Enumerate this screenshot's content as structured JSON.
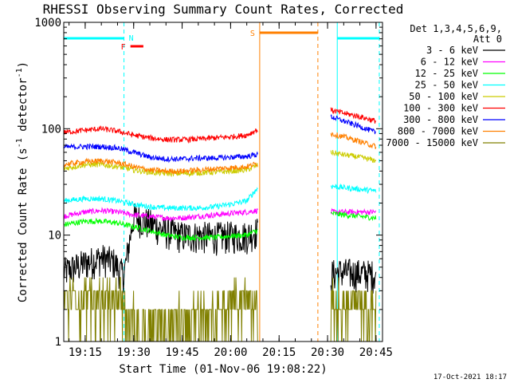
{
  "chart_data": {
    "type": "line",
    "title": "RHESSI Observing Summary Count Rates, Corrected",
    "xlabel": "Start Time (01-Nov-06 19:08:22)",
    "ylabel_main": "Corrected Count Rate (s",
    "ylabel_sup1": "-1",
    "ylabel_mid": " detector",
    "ylabel_sup2": "-1",
    "ylabel_end": ")",
    "yscale": "log",
    "xlim": [
      "19:08:22",
      "20:47:00"
    ],
    "ylim": [
      1,
      1000
    ],
    "x_ticks": [
      "19:15",
      "19:30",
      "19:45",
      "20:00",
      "20:15",
      "20:30",
      "20:45"
    ],
    "y_ticks": [
      "1",
      "10",
      "100",
      "1000"
    ],
    "legend_title_1": "Det 1,3,4,5,6,9,",
    "legend_title_2": "Att 0",
    "legend_placement": "right",
    "footer": "17-Oct-2021 18:17",
    "annotations": {
      "n_label": "N",
      "f_label": "F",
      "s_label": "S",
      "night": [
        [
          "19:08:22",
          "19:27:00"
        ],
        [
          "20:33:00",
          "20:46:00"
        ]
      ],
      "flare": [
        "19:29:00",
        "19:33:00"
      ],
      "saa": [
        "20:09:00",
        "20:27:00"
      ],
      "n_color": "#00ffff",
      "f_color": "#ff0000",
      "s_color": "#ff8000"
    },
    "data_gaps": [
      [
        "20:08:30",
        "20:31:00"
      ]
    ],
    "series": [
      {
        "name": "3 - 6 keV",
        "color": "#000000",
        "x": [
          "19:08",
          "19:15",
          "19:20",
          "19:24",
          "19:26",
          "19:27",
          "19:30",
          "19:35",
          "19:40",
          "19:45",
          "19:50",
          "19:55",
          "20:00",
          "20:05",
          "20:08",
          "20:31",
          "20:33",
          "20:35",
          "20:40",
          "20:45"
        ],
        "values": [
          4.5,
          5.5,
          6.2,
          5.6,
          4.5,
          4.3,
          15,
          13,
          11,
          10,
          10,
          9.8,
          10,
          10,
          11,
          4.3,
          4.5,
          4.5,
          4.4,
          4.3
        ]
      },
      {
        "name": "6 - 12 keV",
        "color": "#ff00ff",
        "x": [
          "19:08",
          "19:15",
          "19:20",
          "19:25",
          "19:30",
          "19:35",
          "19:40",
          "19:45",
          "19:50",
          "19:55",
          "20:00",
          "20:05",
          "20:08",
          "20:31",
          "20:35",
          "20:40",
          "20:45"
        ],
        "values": [
          15,
          16.5,
          17,
          16.5,
          15.5,
          15,
          14.5,
          14.5,
          15,
          15.5,
          16,
          16.5,
          17,
          16.5,
          16.5,
          16.5,
          16.5
        ]
      },
      {
        "name": "12 - 25 keV",
        "color": "#00ff00",
        "x": [
          "19:08",
          "19:15",
          "19:20",
          "19:25",
          "19:30",
          "19:35",
          "19:40",
          "19:45",
          "19:50",
          "19:55",
          "20:00",
          "20:05",
          "20:08",
          "20:31",
          "20:35",
          "20:40",
          "20:45"
        ],
        "values": [
          12.5,
          13.5,
          13.5,
          13,
          12,
          11,
          10,
          9.5,
          9.5,
          9.5,
          9.8,
          10,
          11,
          16,
          15.5,
          15,
          14.5
        ]
      },
      {
        "name": "25 - 50 keV",
        "color": "#00ffff",
        "x": [
          "19:08",
          "19:15",
          "19:20",
          "19:25",
          "19:30",
          "19:35",
          "19:40",
          "19:45",
          "19:50",
          "19:55",
          "20:00",
          "20:05",
          "20:08",
          "20:31",
          "20:35",
          "20:40",
          "20:45"
        ],
        "values": [
          21,
          22,
          22,
          21,
          19.5,
          18.5,
          18,
          18,
          18,
          18.5,
          19.5,
          21,
          27,
          29,
          28,
          27,
          26
        ]
      },
      {
        "name": "50 - 100 keV",
        "color": "#cccc00",
        "x": [
          "19:08",
          "19:15",
          "19:20",
          "19:25",
          "19:30",
          "19:35",
          "19:40",
          "19:45",
          "19:50",
          "19:55",
          "20:00",
          "20:05",
          "20:08",
          "20:31",
          "20:35",
          "20:40",
          "20:45"
        ],
        "values": [
          42,
          46,
          46,
          44,
          41,
          39,
          38,
          38,
          38.5,
          39,
          40,
          41,
          45,
          60,
          57,
          54,
          50
        ]
      },
      {
        "name": "100 - 300 keV",
        "color": "#ff0000",
        "x": [
          "19:08",
          "19:15",
          "19:20",
          "19:25",
          "19:30",
          "19:35",
          "19:40",
          "19:45",
          "19:50",
          "19:55",
          "20:00",
          "20:05",
          "20:08",
          "20:31",
          "20:35",
          "20:40",
          "20:45"
        ],
        "values": [
          92,
          97,
          100,
          95,
          87,
          82,
          79,
          79,
          80,
          82,
          84,
          87,
          97,
          150,
          140,
          130,
          118
        ]
      },
      {
        "name": "300 - 800 keV",
        "color": "#0000ff",
        "x": [
          "19:08",
          "19:15",
          "19:20",
          "19:25",
          "19:30",
          "19:35",
          "19:40",
          "19:45",
          "19:50",
          "19:55",
          "20:00",
          "20:05",
          "20:08",
          "20:31",
          "20:35",
          "20:40",
          "20:45"
        ],
        "values": [
          67,
          68,
          68,
          66,
          60,
          54,
          52,
          52,
          53,
          53,
          54,
          55,
          57,
          130,
          118,
          105,
          92
        ]
      },
      {
        "name": "800 - 7000 keV",
        "color": "#ff8000",
        "x": [
          "19:08",
          "19:15",
          "19:20",
          "19:25",
          "19:30",
          "19:35",
          "19:40",
          "19:45",
          "19:50",
          "19:55",
          "20:00",
          "20:05",
          "20:08",
          "20:31",
          "20:35",
          "20:40",
          "20:45"
        ],
        "values": [
          46,
          49,
          50,
          48,
          44,
          41,
          40,
          40,
          41,
          42,
          43,
          44,
          47,
          90,
          84,
          76,
          68
        ]
      },
      {
        "name": "7000 - 15000 keV",
        "color": "#808000",
        "x": [
          "19:08",
          "19:15",
          "19:20",
          "19:26",
          "19:28",
          "19:35",
          "19:45",
          "19:55",
          "20:00",
          "20:05",
          "20:08",
          "20:31",
          "20:35",
          "20:40",
          "20:45"
        ],
        "values": [
          2.5,
          2.6,
          2.6,
          2.5,
          1.6,
          1.6,
          1.6,
          1.7,
          2.5,
          2.5,
          2.5,
          2.2,
          2.2,
          2.1,
          2.0
        ]
      }
    ]
  }
}
